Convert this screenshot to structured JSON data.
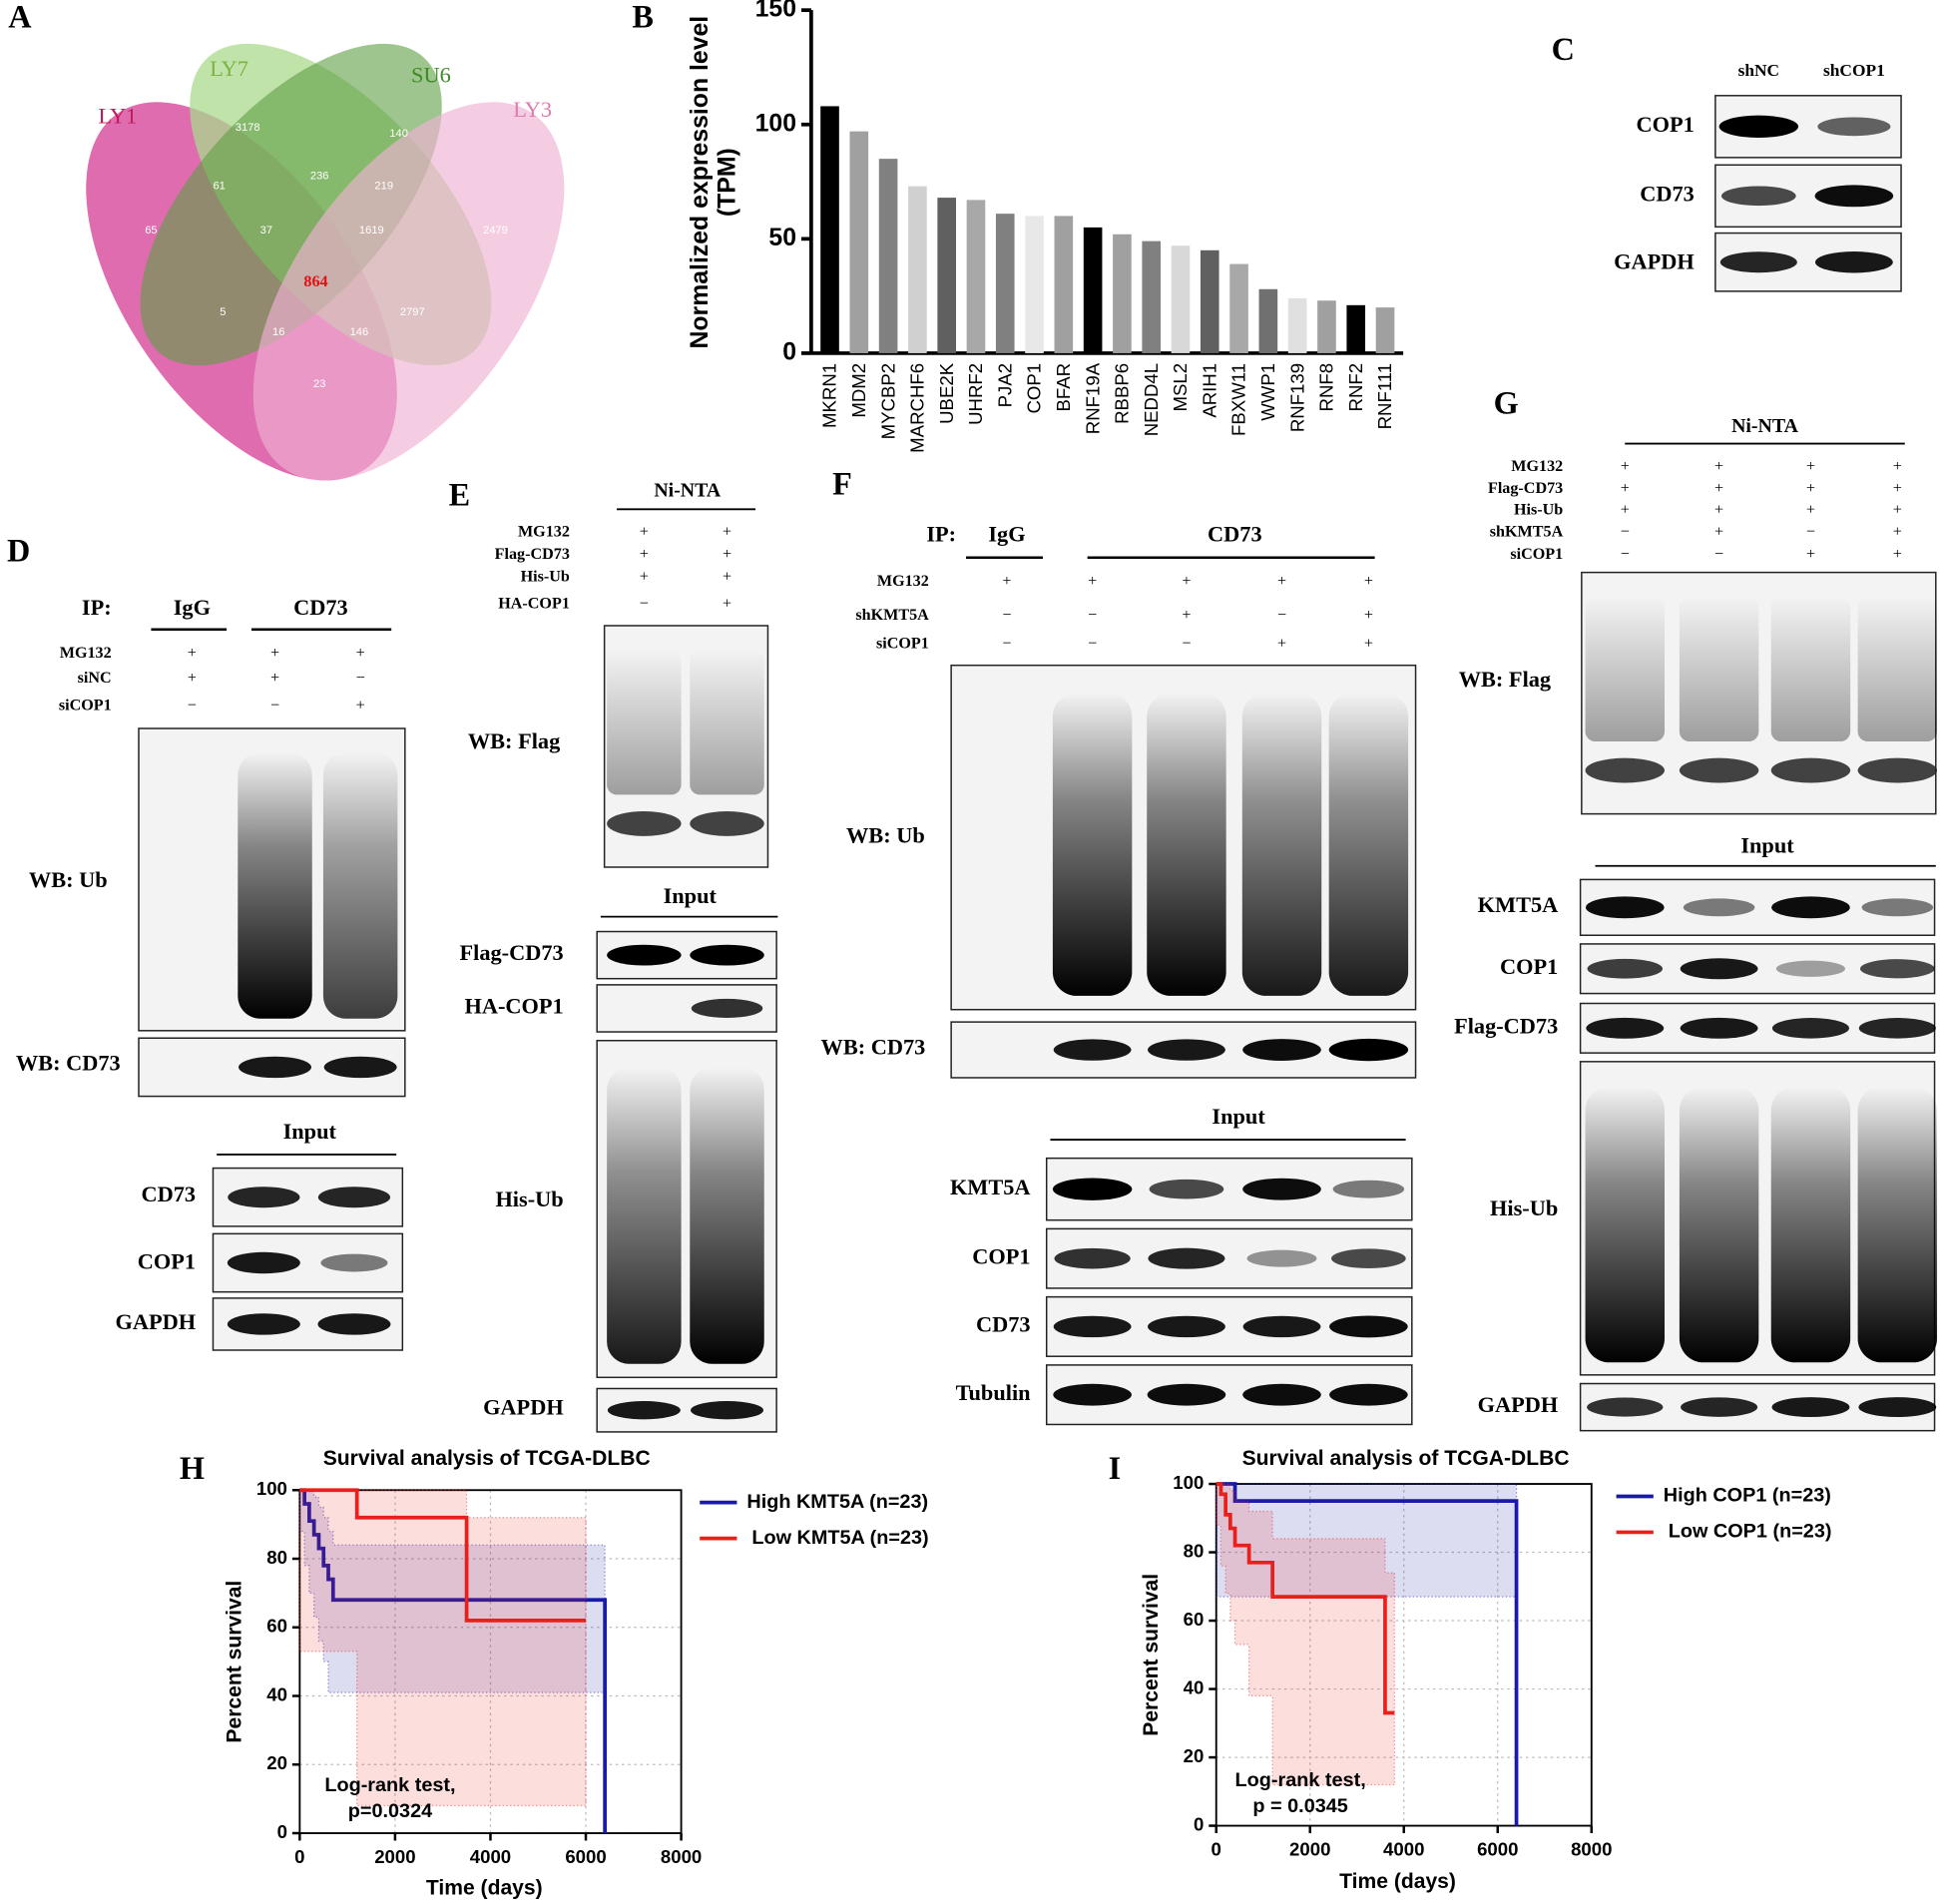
{
  "venn": {
    "letter": "A",
    "sets": [
      "LY1",
      "LY7",
      "SU6",
      "LY3"
    ],
    "regions": [
      3178,
      140,
      61,
      236,
      219,
      65,
      37,
      1619,
      2479,
      864,
      5,
      2797,
      16,
      146,
      23
    ]
  },
  "chart_data": [
    {
      "type": "bar",
      "letter": "B",
      "categories": [
        "MKRN1",
        "MDM2",
        "MYCBP2",
        "MARCHF6",
        "UBE2K",
        "UHRF2",
        "PJA2",
        "COP1",
        "BFAR",
        "RNF19A",
        "RBBP6",
        "NEDD4L",
        "MSL2",
        "ARIH1",
        "FBXW11",
        "WWP1",
        "RNF139",
        "RNF8",
        "RNF2",
        "RNF111"
      ],
      "values": [
        108,
        97,
        85,
        73,
        68,
        67,
        61,
        60,
        60,
        55,
        52,
        49,
        47,
        45,
        39,
        28,
        24,
        23,
        21,
        20
      ],
      "colors": [
        "#000000",
        "#a0a0a0",
        "#808080",
        "#d0d0d0",
        "#606060",
        "#a8a8a8",
        "#808080",
        "#e8e8e8",
        "#a0a0a0",
        "#000000",
        "#a0a0a0",
        "#808080",
        "#d8d8d8",
        "#606060",
        "#a8a8a8",
        "#707070",
        "#e0e0e0",
        "#a0a0a0",
        "#000000",
        "#a0a0a0"
      ],
      "ylabel": [
        "Normalized expression level",
        "(TPM)"
      ],
      "ylim": [
        0,
        150
      ],
      "yticks": [
        0,
        50,
        100,
        150
      ]
    },
    {
      "type": "survival",
      "letter": "H",
      "title": "Survival analysis of TCGA-DLBC",
      "xlabel": "Time (days)",
      "ylabel": "Percent survival",
      "xlim": [
        0,
        8000
      ],
      "xticks": [
        0,
        2000,
        4000,
        6000,
        8000
      ],
      "ylim": [
        0,
        100
      ],
      "yticks": [
        0,
        20,
        40,
        60,
        80,
        100
      ],
      "grid": true,
      "annotation": [
        "Log-rank test,",
        "p=0.0324"
      ],
      "series": [
        {
          "name": "High KMT5A (n=23)",
          "color": "#1a1aa8",
          "x": [
            0,
            100,
            200,
            300,
            400,
            500,
            600,
            700,
            6400,
            6400
          ],
          "values": [
            100,
            96,
            91,
            87,
            83,
            78,
            74,
            68,
            68,
            0
          ],
          "upper": [
            100,
            100,
            100,
            98,
            95,
            92,
            88,
            84,
            84,
            84
          ],
          "lower": [
            100,
            88,
            78,
            70,
            63,
            56,
            50,
            41,
            41,
            0
          ]
        },
        {
          "name": "Low KMT5A (n=23)",
          "color": "#e8201c",
          "x": [
            0,
            1200,
            3500,
            6000
          ],
          "values": [
            100,
            92,
            62,
            62
          ],
          "upper": [
            100,
            100,
            92,
            92
          ],
          "lower": [
            100,
            53,
            8,
            8
          ]
        }
      ]
    },
    {
      "type": "survival",
      "letter": "I",
      "title": "Survival analysis of TCGA-DLBC",
      "xlabel": "Time (days)",
      "ylabel": "Percent survival",
      "xlim": [
        0,
        8000
      ],
      "xticks": [
        0,
        2000,
        4000,
        6000,
        8000
      ],
      "ylim": [
        0,
        100
      ],
      "yticks": [
        0,
        20,
        40,
        60,
        80,
        100
      ],
      "grid": true,
      "annotation": [
        "Log-rank test,",
        "p = 0.0345"
      ],
      "series": [
        {
          "name": "High COP1 (n=23)",
          "color": "#1a1aa8",
          "x": [
            0,
            400,
            6400,
            6400
          ],
          "values": [
            100,
            95,
            95,
            0
          ],
          "upper": [
            100,
            100,
            100,
            100
          ],
          "lower": [
            100,
            67,
            67,
            0
          ]
        },
        {
          "name": "Low COP1 (n=23)",
          "color": "#e8201c",
          "x": [
            0,
            100,
            200,
            300,
            400,
            700,
            1200,
            3600,
            3800
          ],
          "values": [
            100,
            97,
            91,
            87,
            82,
            77,
            67,
            33,
            33
          ],
          "upper": [
            100,
            100,
            100,
            98,
            95,
            92,
            84,
            74,
            74
          ],
          "lower": [
            100,
            88,
            76,
            68,
            60,
            53,
            38,
            12,
            12
          ]
        }
      ]
    }
  ],
  "blots": [
    {
      "letter": "C",
      "lanes": [
        "shNC",
        "shCOP1"
      ],
      "rows": [
        "COP1",
        "CD73",
        "GAPDH"
      ]
    },
    {
      "letter": "D",
      "ip_label": "IP:",
      "groups": [
        "IgG",
        "CD73"
      ],
      "conditions": [
        {
          "name": "MG132",
          "signs": [
            "+",
            "+",
            "+"
          ]
        },
        {
          "name": "siNC",
          "signs": [
            "+",
            "+",
            "−"
          ]
        },
        {
          "name": "siCOP1",
          "signs": [
            "−",
            "−",
            "+"
          ]
        }
      ],
      "rows": [
        "WB: Ub",
        "WB: CD73"
      ],
      "input_title": "Input",
      "input_rows": [
        "CD73",
        "COP1",
        "GAPDH"
      ]
    },
    {
      "letter": "E",
      "header": "Ni-NTA",
      "conditions": [
        {
          "name": "MG132",
          "signs": [
            "+",
            "+"
          ]
        },
        {
          "name": "Flag-CD73",
          "signs": [
            "+",
            "+"
          ]
        },
        {
          "name": "His-Ub",
          "signs": [
            "+",
            "+"
          ]
        },
        {
          "name": "HA-COP1",
          "signs": [
            "−",
            "+"
          ]
        }
      ],
      "rows": [
        "WB: Flag"
      ],
      "input_title": "Input",
      "input_rows": [
        "Flag-CD73",
        "HA-COP1",
        "His-Ub",
        "GAPDH"
      ]
    },
    {
      "letter": "F",
      "ip_label": "IP:",
      "groups": [
        "IgG",
        "CD73"
      ],
      "conditions": [
        {
          "name": "MG132",
          "signs": [
            "+",
            "+",
            "+",
            "+",
            "+"
          ]
        },
        {
          "name": "shKMT5A",
          "signs": [
            "−",
            "−",
            "+",
            "−",
            "+"
          ]
        },
        {
          "name": "siCOP1",
          "signs": [
            "−",
            "−",
            "−",
            "+",
            "+"
          ]
        }
      ],
      "rows": [
        "WB: Ub",
        "WB: CD73"
      ],
      "input_title": "Input",
      "input_rows": [
        "KMT5A",
        "COP1",
        "CD73",
        "Tubulin"
      ]
    },
    {
      "letter": "G",
      "header": "Ni-NTA",
      "conditions": [
        {
          "name": "MG132",
          "signs": [
            "+",
            "+",
            "+",
            "+"
          ]
        },
        {
          "name": "Flag-CD73",
          "signs": [
            "+",
            "+",
            "+",
            "+"
          ]
        },
        {
          "name": "His-Ub",
          "signs": [
            "+",
            "+",
            "+",
            "+"
          ]
        },
        {
          "name": "shKMT5A",
          "signs": [
            "−",
            "+",
            "−",
            "+"
          ]
        },
        {
          "name": "siCOP1",
          "signs": [
            "−",
            "−",
            "+",
            "+"
          ]
        }
      ],
      "rows": [
        "WB: Flag"
      ],
      "input_title": "Input",
      "input_rows": [
        "KMT5A",
        "COP1",
        "Flag-CD73",
        "His-Ub",
        "GAPDH"
      ]
    }
  ]
}
